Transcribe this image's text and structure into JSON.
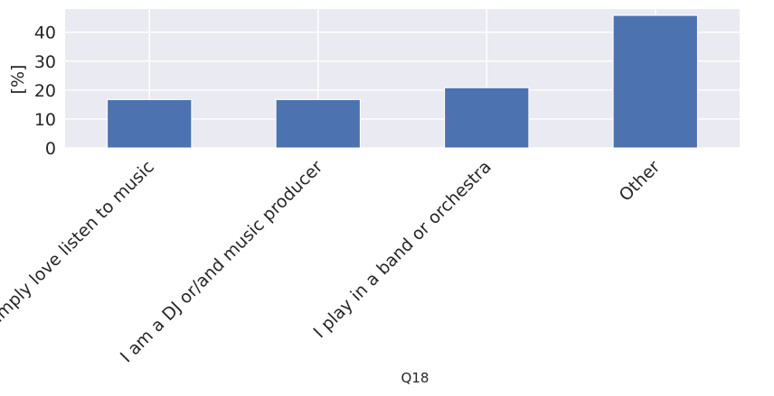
{
  "chart_data": {
    "type": "bar",
    "categories": [
      "I simply love listen to music",
      "I am a DJ or/and music producer",
      "I play in a band or orchestra",
      "Other"
    ],
    "series": [
      {
        "values": [
          16.7,
          16.7,
          20.8,
          45.8
        ],
        "color": "#4c72b0"
      }
    ],
    "xlabel": "Q18",
    "ylabel": "[%]",
    "ylim": [
      0,
      48
    ],
    "yticks": [
      0,
      10,
      20,
      30,
      40
    ],
    "grid": true,
    "legend": "none",
    "colors": {
      "plot_background": "#eaeaf2",
      "grid": "#ffffff",
      "text": "#262626",
      "bar": "#4c72b0"
    }
  }
}
